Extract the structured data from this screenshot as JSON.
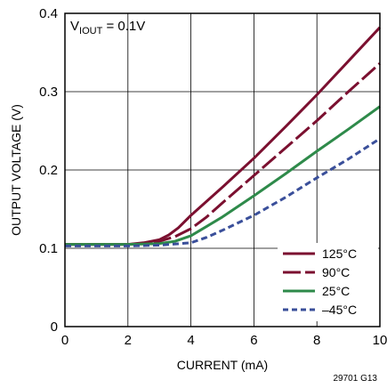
{
  "chart_data": {
    "type": "line",
    "xlabel": "CURRENT (mA)",
    "ylabel": "OUTPUT VOLTAGE (V)",
    "xlim": [
      0,
      10
    ],
    "ylim": [
      0,
      0.4
    ],
    "xticks": [
      0,
      2,
      4,
      6,
      8,
      10
    ],
    "yticks": [
      0,
      0.1,
      0.2,
      0.3,
      0.4
    ],
    "xtick_labels": [
      "0",
      "2",
      "4",
      "6",
      "8",
      "10"
    ],
    "ytick_labels": [
      "0",
      "0.1",
      "0.2",
      "0.3",
      "0.4"
    ],
    "grid": true,
    "legend_position": "bottom-right",
    "annotation": {
      "main": "V",
      "sub": "IOUT",
      "rest": " = 0.1V"
    },
    "figure_code": "29701 G13",
    "series": [
      {
        "name": "125°C",
        "color": "#7b1030",
        "dash": "solid",
        "x": [
          0,
          2.0,
          2.5,
          3.0,
          3.3,
          3.6,
          4.0,
          5.0,
          6.0,
          7.0,
          8.0,
          9.0,
          10.0
        ],
        "y": [
          0.105,
          0.105,
          0.107,
          0.111,
          0.117,
          0.126,
          0.142,
          0.178,
          0.215,
          0.255,
          0.296,
          0.339,
          0.382
        ]
      },
      {
        "name": "90°C",
        "color": "#7b1030",
        "dash": "longdash",
        "x": [
          0,
          2.0,
          2.5,
          3.0,
          3.5,
          4.0,
          4.5,
          5.0,
          6.0,
          7.0,
          8.0,
          9.0,
          10.0
        ],
        "y": [
          0.105,
          0.105,
          0.106,
          0.109,
          0.115,
          0.125,
          0.14,
          0.158,
          0.193,
          0.228,
          0.263,
          0.3,
          0.336
        ]
      },
      {
        "name": "25°C",
        "color": "#2e8a4a",
        "dash": "solid",
        "x": [
          0,
          2.0,
          3.0,
          3.5,
          4.0,
          4.5,
          5.0,
          6.0,
          7.0,
          8.0,
          9.0,
          10.0
        ],
        "y": [
          0.105,
          0.105,
          0.106,
          0.109,
          0.116,
          0.128,
          0.14,
          0.167,
          0.195,
          0.224,
          0.252,
          0.281
        ]
      },
      {
        "name": "–45°C",
        "color": "#3a4f9a",
        "dash": "shortdash",
        "x": [
          0,
          2.0,
          3.0,
          4.0,
          4.5,
          5.0,
          6.0,
          7.0,
          8.0,
          9.0,
          10.0
        ],
        "y": [
          0.103,
          0.103,
          0.104,
          0.107,
          0.114,
          0.123,
          0.142,
          0.165,
          0.19,
          0.214,
          0.24
        ]
      }
    ]
  }
}
